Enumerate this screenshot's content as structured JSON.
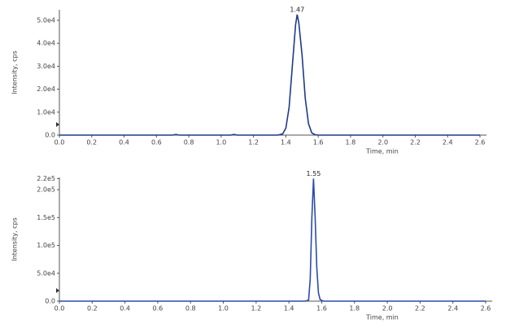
{
  "chart_data": [
    {
      "type": "line",
      "annotation": "1.47",
      "xlabel": "Time, min",
      "ylabel": "Intensity, cps",
      "color": "#1f3a8a",
      "x": [
        0.0,
        0.7,
        0.72,
        0.74,
        1.06,
        1.08,
        1.1,
        1.35,
        1.38,
        1.4,
        1.42,
        1.44,
        1.46,
        1.47,
        1.48,
        1.5,
        1.52,
        1.54,
        1.56,
        1.58,
        1.6,
        2.6
      ],
      "values": [
        0,
        0,
        300,
        0,
        0,
        300,
        0,
        0,
        500,
        3000,
        12000,
        30000,
        48000,
        52500,
        49000,
        35000,
        16000,
        5000,
        1000,
        200,
        0,
        0
      ],
      "xlim": [
        0,
        2.6
      ],
      "xticks": [
        {
          "value": 0,
          "label": "0.0"
        },
        0.2,
        0.4,
        0.6,
        0.8,
        {
          "value": 1,
          "label": "1.0"
        },
        1.2,
        1.4,
        1.6,
        1.8,
        {
          "value": 2,
          "label": "2.0"
        },
        2.2,
        2.4,
        2.6
      ],
      "ylim": [
        0,
        54600
      ],
      "yticks": [
        {
          "value": 0,
          "label": "0.0"
        },
        {
          "value": 10000,
          "label": "1.0e4"
        },
        {
          "value": 20000,
          "label": "2.0e4"
        },
        {
          "value": 30000,
          "label": "3.0e4"
        },
        {
          "value": 40000,
          "label": "4.0e4"
        },
        {
          "value": 50000,
          "label": "5.0e4"
        }
      ]
    },
    {
      "type": "line",
      "annotation": "1.55",
      "xlabel": "Time, min",
      "ylabel": "Intensity, cps",
      "color": "#2b4bb0",
      "x": [
        0.0,
        1.5,
        1.52,
        1.53,
        1.54,
        1.55,
        1.56,
        1.57,
        1.58,
        1.59,
        1.61,
        2.6
      ],
      "values": [
        0,
        0,
        2000,
        40000,
        150000,
        220000,
        150000,
        60000,
        15000,
        3000,
        0,
        0
      ],
      "xlim": [
        0,
        2.6
      ],
      "xticks": [
        {
          "value": 0,
          "label": "0.0"
        },
        0.2,
        0.4,
        0.6,
        0.8,
        {
          "value": 1,
          "label": "1.0"
        },
        1.2,
        1.4,
        1.6,
        1.8,
        {
          "value": 2,
          "label": "2.0"
        },
        2.2,
        2.4,
        2.6
      ],
      "ylim": [
        0,
        222000
      ],
      "yticks": [
        {
          "value": 0,
          "label": "0.0"
        },
        {
          "value": 50000,
          "label": "5.0e4"
        },
        {
          "value": 100000,
          "label": "1.0e5"
        },
        {
          "value": 150000,
          "label": "1.5e5"
        },
        {
          "value": 200000,
          "label": "2.0e5"
        },
        {
          "value": 220000,
          "label": "2.2e5"
        }
      ]
    }
  ]
}
